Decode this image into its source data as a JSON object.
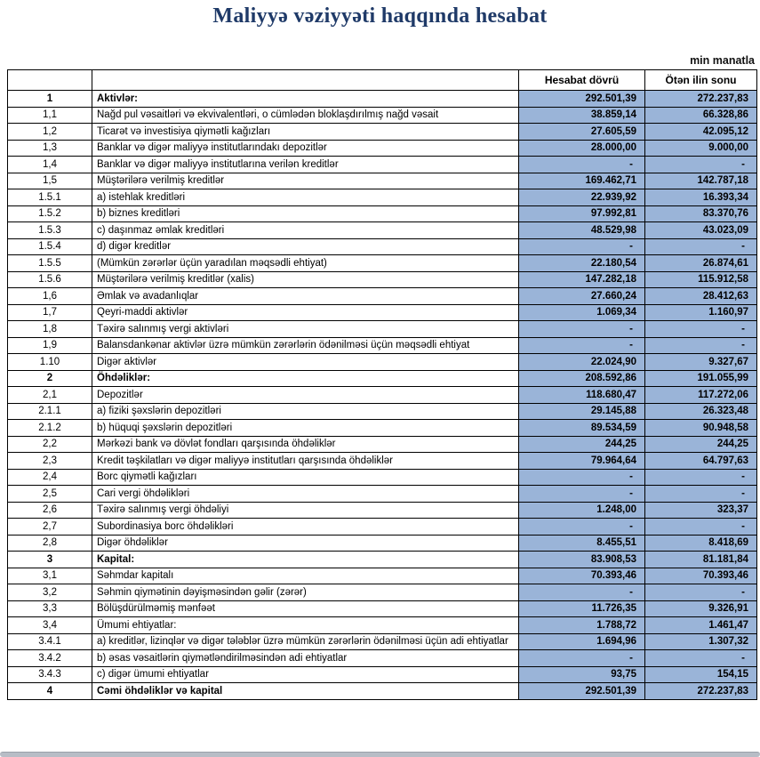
{
  "page": {
    "title": "Maliyyə vəziyyəti haqqında hesabat",
    "unit_note": "min manatla"
  },
  "colors": {
    "accent_blue": "#9ab4d8",
    "title_navy": "#1f3a68",
    "border_black": "#000000"
  },
  "table": {
    "header": {
      "number_label": "",
      "description_label": "",
      "current_label": "Hesabat dövrü",
      "previous_label": "Ötən ilin sonu"
    },
    "rows": [
      {
        "no": "1",
        "desc": "Aktivlər:",
        "current": "292.501,39",
        "previous": "272.237,83",
        "bold": true
      },
      {
        "no": "1,1",
        "desc": "Nağd pul vəsaitləri və  ekvivalentləri, o cümlədən bloklaşdırılmış nağd vəsait",
        "current": "38.859,14",
        "previous": "66.328,86"
      },
      {
        "no": "1,2",
        "desc": "Ticarət və investisiya qiymətli kağızları",
        "current": "27.605,59",
        "previous": "42.095,12"
      },
      {
        "no": "1,3",
        "desc": "Banklar və digər maliyyə institutlarındakı depozitlər",
        "current": "28.000,00",
        "previous": "9.000,00"
      },
      {
        "no": "1,4",
        "desc": "Banklar və digər maliyyə institutlarına verilən kreditlər",
        "current": "-",
        "previous": "-"
      },
      {
        "no": "1,5",
        "desc": "Müştərilərə verilmiş kreditlər",
        "current": "169.462,71",
        "previous": "142.787,18"
      },
      {
        "no": "1.5.1",
        "desc": "a) istehlak kreditləri",
        "current": "22.939,92",
        "previous": "16.393,34"
      },
      {
        "no": "1.5.2",
        "desc": "b) biznes kreditləri",
        "current": "97.992,81",
        "previous": "83.370,76"
      },
      {
        "no": "1.5.3",
        "desc": "c) daşınmaz əmlak kreditləri",
        "current": "48.529,98",
        "previous": "43.023,09"
      },
      {
        "no": "1.5.4",
        "desc": "d) digər kreditlər",
        "current": "-",
        "previous": "-"
      },
      {
        "no": "1.5.5",
        "desc": "(Mümkün zərərlər üçün yaradılan məqsədli ehtiyat)",
        "current": "22.180,54",
        "previous": "26.874,61"
      },
      {
        "no": "1.5.6",
        "desc": "Müştərilərə verilmiş kreditlər (xalis)",
        "current": "147.282,18",
        "previous": "115.912,58"
      },
      {
        "no": "1,6",
        "desc": "Əmlak və avadanlıqlar",
        "current": "27.660,24",
        "previous": "28.412,63"
      },
      {
        "no": "1,7",
        "desc": "Qeyri-maddi aktivlər",
        "current": "1.069,34",
        "previous": "1.160,97"
      },
      {
        "no": "1,8",
        "desc": "Təxirə salınmış vergi aktivləri",
        "current": "-",
        "previous": "-"
      },
      {
        "no": "1,9",
        "desc": "Balansdankənar aktivlər üzrə mümkün zərərlərin ödənilməsi üçün məqsədli ehtiyat",
        "current": "-",
        "previous": "-"
      },
      {
        "no": "1.10",
        "desc": "Digər aktivlər",
        "current": "22.024,90",
        "previous": "9.327,67"
      },
      {
        "no": "2",
        "desc": "Öhdəliklər:",
        "current": "208.592,86",
        "previous": "191.055,99",
        "bold": true
      },
      {
        "no": "2,1",
        "desc": "Depozitlər",
        "current": "118.680,47",
        "previous": "117.272,06"
      },
      {
        "no": "2.1.1",
        "desc": "a) fiziki şəxslərin depozitləri",
        "current": "29.145,88",
        "previous": "26.323,48"
      },
      {
        "no": "2.1.2",
        "desc": "b) hüquqi şəxslərin depozitləri",
        "current": "89.534,59",
        "previous": "90.948,58"
      },
      {
        "no": "2,2",
        "desc": "Mərkəzi bank və dövlət fondları qarşısında öhdəliklər",
        "current": "244,25",
        "previous": "244,25"
      },
      {
        "no": "2,3",
        "desc": "Kredit təşkilatları və digər maliyyə institutları qarşısında öhdəliklər",
        "current": "79.964,64",
        "previous": "64.797,63"
      },
      {
        "no": "2,4",
        "desc": "Borc qiymətli kağızları",
        "current": "-",
        "previous": "-"
      },
      {
        "no": "2,5",
        "desc": "Cari vergi öhdəlikləri",
        "current": "-",
        "previous": "-"
      },
      {
        "no": "2,6",
        "desc": "Təxirə salınmış vergi öhdəliyi",
        "current": "1.248,00",
        "previous": "323,37"
      },
      {
        "no": "2,7",
        "desc": "Subordinasiya borc öhdəlikləri",
        "current": "-",
        "previous": "-"
      },
      {
        "no": "2,8",
        "desc": "Digər öhdəliklər",
        "current": "8.455,51",
        "previous": "8.418,69"
      },
      {
        "no": "3",
        "desc": "Kapital:",
        "current": "83.908,53",
        "previous": "81.181,84",
        "bold": true
      },
      {
        "no": "3,1",
        "desc": "Səhmdar kapitalı",
        "current": "70.393,46",
        "previous": "70.393,46"
      },
      {
        "no": "3,2",
        "desc": "Səhmin qiymətinin dəyişməsindən gəlir (zərər)",
        "current": "-",
        "previous": "-"
      },
      {
        "no": "3,3",
        "desc": "Bölüşdürülməmiş mənfəət",
        "current": "11.726,35",
        "previous": "9.326,91"
      },
      {
        "no": "3,4",
        "desc": "Ümumi ehtiyatlar:",
        "current": "1.788,72",
        "previous": "1.461,47"
      },
      {
        "no": "3.4.1",
        "desc": "a) kreditlər, lizinqlər və digər tələblər üzrə mümkün zərərlərin ödənilməsi üçün adi ehtiyatlar",
        "current": "1.694,96",
        "previous": "1.307,32"
      },
      {
        "no": "3.4.2",
        "desc": "b) əsas vəsaitlərin qiymətləndirilməsindən adi ehtiyatlar",
        "current": "-",
        "previous": "-"
      },
      {
        "no": "3.4.3",
        "desc": "c) digər ümumi ehtiyatlar",
        "current": "93,75",
        "previous": "154,15"
      },
      {
        "no": "4",
        "desc": "Cəmi öhdəliklər və kapital",
        "current": "292.501,39",
        "previous": "272.237,83",
        "bold": true
      }
    ]
  }
}
